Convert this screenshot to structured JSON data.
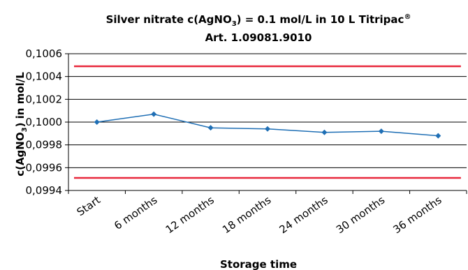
{
  "chart_data": {
    "type": "line",
    "title": {
      "line1": "Silver nitrate c(AgNO",
      "line1_sub": "3",
      "line1_rest": ") = 0.1 mol/L in 10 L Titripac",
      "line1_sup": "®",
      "line2": "Art. 1.09081.9010"
    },
    "xlabel": "Storage time",
    "ylabel": {
      "pre": "c(AgNO",
      "sub": "3",
      "post": ") in mol/L"
    },
    "categories": [
      "Start",
      "6 months",
      "12 months",
      "18 months",
      "24 months",
      "30 months",
      "36 months"
    ],
    "y_tick_values": [
      0.0994,
      0.0996,
      0.0998,
      0.1,
      0.1002,
      0.1004,
      0.1006
    ],
    "y_tick_labels": [
      "0,0994",
      "0,0996",
      "0,0998",
      "0,1000",
      "0,1002",
      "0,1004",
      "0,1006"
    ],
    "ylim": [
      0.0994,
      0.1006
    ],
    "grid": true,
    "series": [
      {
        "values": [
          0.1,
          0.10007,
          0.09995,
          0.09994,
          0.09991,
          0.09992,
          0.09988
        ],
        "color": "#1F6FB5",
        "marker": "diamond"
      }
    ],
    "limit_lines": [
      {
        "value": 0.10049,
        "color": "#E8283C"
      },
      {
        "value": 0.09951,
        "color": "#E8283C"
      }
    ]
  }
}
